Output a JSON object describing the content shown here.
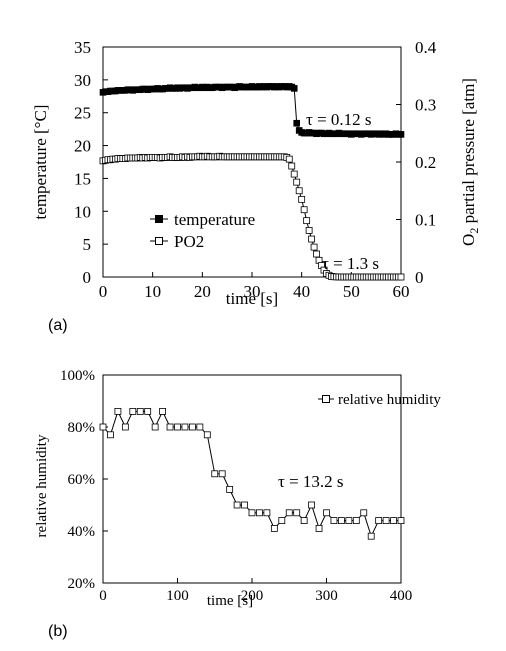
{
  "chart_data": [
    {
      "panel_label": "(a)",
      "type": "scatter",
      "xlabel": "time [s]",
      "ylabel_left": "temperature [°C]",
      "ylabel_right": "O2 partial pressure [atm]",
      "ylabel_right_parts": {
        "pre": "O",
        "sub": "2",
        "post": " partial pressure [atm]"
      },
      "xlim": [
        0,
        60
      ],
      "ylim_left": [
        0,
        35
      ],
      "ylim_right": [
        0,
        0.4
      ],
      "x_ticks": [
        "0",
        "10",
        "20",
        "30",
        "40",
        "50",
        "60"
      ],
      "y_ticks_left": [
        "0",
        "5",
        "10",
        "15",
        "20",
        "25",
        "30",
        "35"
      ],
      "y_ticks_right": [
        "0",
        "0.1",
        "0.2",
        "0.3",
        "0.4"
      ],
      "legend_placement": "center-left",
      "annotations": [
        "τ = 0.12 s",
        "τ = 1.3 s"
      ],
      "series": [
        {
          "name": "temperature",
          "marker": "filled-square",
          "axis": "left",
          "x": [
            0,
            0.5,
            1,
            1.5,
            2,
            2.5,
            3,
            3.5,
            4,
            4.5,
            5,
            5.5,
            6,
            6.5,
            7,
            7.5,
            8,
            8.5,
            9,
            9.5,
            10,
            10.5,
            11,
            11.5,
            12,
            12.5,
            13,
            13.5,
            14,
            14.5,
            15,
            15.5,
            16,
            16.5,
            17,
            17.5,
            18,
            18.5,
            19,
            19.5,
            20,
            20.5,
            21,
            21.5,
            22,
            22.5,
            23,
            23.5,
            24,
            24.5,
            25,
            25.5,
            26,
            26.5,
            27,
            27.5,
            28,
            28.5,
            29,
            29.5,
            30,
            30.5,
            31,
            31.5,
            32,
            32.5,
            33,
            33.5,
            34,
            34.5,
            35,
            35.5,
            36,
            36.5,
            37,
            37.5,
            38,
            38.5,
            39,
            39.5,
            40,
            40.5,
            41,
            41.5,
            42,
            42.5,
            43,
            43.5,
            44,
            44.5,
            45,
            45.5,
            46,
            46.5,
            47,
            47.5,
            48,
            48.5,
            49,
            49.5,
            50,
            50.5,
            51,
            51.5,
            52,
            52.5,
            53,
            53.5,
            54,
            54.5,
            55,
            55.5,
            56,
            56.5,
            57,
            57.5,
            58,
            58.5,
            59,
            59.5,
            60
          ],
          "y": [
            28.1,
            28.2,
            28.2,
            28.3,
            28.3,
            28.3,
            28.4,
            28.4,
            28.4,
            28.4,
            28.5,
            28.5,
            28.4,
            28.5,
            28.5,
            28.5,
            28.6,
            28.6,
            28.5,
            28.6,
            28.6,
            28.6,
            28.7,
            28.6,
            28.6,
            28.7,
            28.7,
            28.8,
            28.7,
            28.7,
            28.8,
            28.7,
            28.8,
            28.8,
            28.7,
            28.8,
            28.8,
            28.9,
            28.8,
            28.8,
            28.9,
            28.8,
            28.9,
            28.8,
            28.8,
            28.9,
            28.9,
            28.9,
            28.8,
            28.9,
            28.9,
            28.9,
            28.9,
            28.8,
            28.9,
            29.0,
            28.9,
            28.9,
            28.9,
            28.9,
            29.0,
            28.9,
            28.9,
            29.0,
            28.9,
            29.0,
            28.9,
            29.0,
            29.0,
            28.9,
            29.0,
            28.9,
            29.0,
            29.0,
            28.9,
            29.0,
            28.9,
            28.7,
            23.4,
            22.3,
            22.0,
            21.9,
            21.9,
            22.0,
            21.9,
            21.9,
            21.8,
            21.9,
            21.9,
            21.8,
            21.8,
            21.9,
            21.8,
            21.8,
            21.8,
            21.9,
            21.8,
            21.8,
            21.8,
            21.8,
            21.7,
            21.8,
            21.8,
            21.8,
            21.7,
            21.8,
            21.8,
            21.8,
            21.7,
            21.8,
            21.8,
            21.7,
            21.8,
            21.7,
            21.8,
            21.7,
            21.7,
            21.7,
            21.8,
            21.7,
            21.7
          ]
        },
        {
          "name": "PO2",
          "marker": "open-square",
          "axis": "right",
          "x": [
            0,
            0.5,
            1,
            1.5,
            2,
            2.5,
            3,
            3.5,
            4,
            4.5,
            5,
            5.5,
            6,
            6.5,
            7,
            7.5,
            8,
            8.5,
            9,
            9.5,
            10,
            10.5,
            11,
            11.5,
            12,
            12.5,
            13,
            13.5,
            14,
            14.5,
            15,
            15.5,
            16,
            16.5,
            17,
            17.5,
            18,
            18.5,
            19,
            19.5,
            20,
            20.5,
            21,
            21.5,
            22,
            22.5,
            23,
            23.5,
            24,
            24.5,
            25,
            25.5,
            26,
            26.5,
            27,
            27.5,
            28,
            28.5,
            29,
            29.5,
            30,
            30.5,
            31,
            31.5,
            32,
            32.5,
            33,
            33.5,
            34,
            34.5,
            35,
            35.5,
            36,
            36.5,
            37,
            37.5,
            38,
            38.5,
            39,
            39.5,
            40,
            40.5,
            41,
            41.5,
            42,
            42.5,
            43,
            43.5,
            44,
            44.5,
            45,
            45.5,
            46,
            46.5,
            47,
            47.5,
            48,
            48.5,
            49,
            49.5,
            50,
            50.5,
            51,
            51.5,
            52,
            52.5,
            53,
            53.5,
            54,
            54.5,
            55,
            55.5,
            56,
            56.5,
            57,
            57.5,
            58,
            58.5,
            59,
            59.5,
            60
          ],
          "y": [
            0.202,
            0.203,
            0.204,
            0.204,
            0.205,
            0.205,
            0.206,
            0.206,
            0.206,
            0.206,
            0.207,
            0.207,
            0.207,
            0.207,
            0.207,
            0.208,
            0.207,
            0.208,
            0.207,
            0.208,
            0.208,
            0.208,
            0.208,
            0.207,
            0.208,
            0.208,
            0.208,
            0.209,
            0.208,
            0.208,
            0.208,
            0.208,
            0.209,
            0.208,
            0.209,
            0.208,
            0.209,
            0.209,
            0.209,
            0.21,
            0.209,
            0.209,
            0.21,
            0.209,
            0.209,
            0.209,
            0.209,
            0.21,
            0.209,
            0.209,
            0.209,
            0.209,
            0.209,
            0.209,
            0.209,
            0.209,
            0.209,
            0.209,
            0.209,
            0.209,
            0.209,
            0.209,
            0.209,
            0.209,
            0.209,
            0.209,
            0.209,
            0.209,
            0.209,
            0.209,
            0.209,
            0.209,
            0.209,
            0.209,
            0.208,
            0.205,
            0.193,
            0.179,
            0.165,
            0.15,
            0.135,
            0.117,
            0.098,
            0.081,
            0.066,
            0.052,
            0.04,
            0.029,
            0.02,
            0.012,
            0.006,
            0.003,
            0.001,
            0.0005,
            0.0002,
            0.0001,
            0.0,
            0.0,
            0.0,
            0.0,
            0.0,
            0.0,
            0.0,
            0.0,
            0.0,
            0.0,
            0.0,
            0.0,
            0.0,
            0.0,
            0.0,
            0.0,
            0.0,
            0.0,
            0.0,
            0.0,
            0.0,
            0.0,
            0.0,
            0.0,
            0.0
          ]
        }
      ]
    },
    {
      "panel_label": "(b)",
      "type": "line",
      "xlabel": "time [s]",
      "ylabel": "relative humidity",
      "xlim": [
        0,
        400
      ],
      "ylim": [
        20,
        100
      ],
      "x_ticks": [
        "0",
        "100",
        "200",
        "300",
        "400"
      ],
      "y_ticks": [
        "20%",
        "40%",
        "60%",
        "80%",
        "100%"
      ],
      "legend_placement": "top-right",
      "annotations": [
        "τ = 13.2 s"
      ],
      "series": [
        {
          "name": "relative humidity",
          "marker": "open-square",
          "x": [
            0,
            10,
            20,
            30,
            40,
            50,
            60,
            70,
            80,
            90,
            100,
            110,
            120,
            130,
            140,
            150,
            160,
            170,
            180,
            190,
            200,
            210,
            220,
            230,
            240,
            250,
            260,
            270,
            280,
            290,
            300,
            310,
            320,
            330,
            340,
            350,
            360,
            370,
            380,
            390,
            400
          ],
          "y": [
            80,
            77,
            86,
            80,
            86,
            86,
            86,
            80,
            86,
            80,
            80,
            80,
            80,
            80,
            77,
            62,
            62,
            56,
            50,
            50,
            47,
            47,
            47,
            41,
            44,
            47,
            47,
            44,
            50,
            41,
            47,
            44,
            44,
            44,
            44,
            47,
            38,
            44,
            44,
            44,
            44
          ]
        }
      ]
    }
  ]
}
